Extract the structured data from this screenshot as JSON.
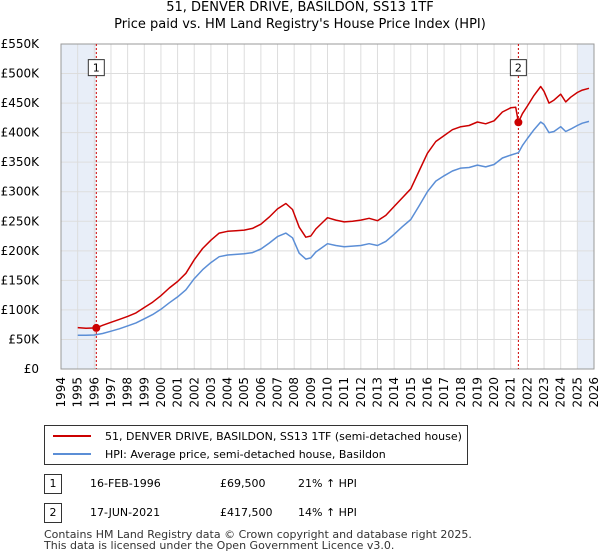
{
  "title_line1": "51, DENVER DRIVE, BASILDON, SS13 1TF",
  "title_line2": "Price paid vs. HM Land Registry's House Price Index (HPI)",
  "legend": {
    "property": "51, DENVER DRIVE, BASILDON, SS13 1TF (semi-detached house)",
    "hpi": "HPI: Average price, semi-detached house, Basildon"
  },
  "colors": {
    "property": "#cc0000",
    "hpi": "#5b8ed6",
    "grid": "#dddddd",
    "shade": "#e8eef8"
  },
  "sales": [
    {
      "num": "1",
      "date": "16-FEB-1996",
      "price": "£69,500",
      "hpi": "21% ↑ HPI"
    },
    {
      "num": "2",
      "date": "17-JUN-2021",
      "price": "£417,500",
      "hpi": "14% ↑ HPI"
    }
  ],
  "footer_line1": "Contains HM Land Registry data © Crown copyright and database right 2025.",
  "footer_line2": "This data is licensed under the Open Government Licence v3.0.",
  "chart_data": {
    "type": "line",
    "xlim": [
      1994,
      2026
    ],
    "ylim": [
      0,
      550000
    ],
    "x_ticks": [
      "1994",
      "1995",
      "1996",
      "1997",
      "1998",
      "1999",
      "2000",
      "2001",
      "2002",
      "2003",
      "2004",
      "2005",
      "2006",
      "2007",
      "2008",
      "2009",
      "2010",
      "2011",
      "2012",
      "2013",
      "2014",
      "2015",
      "2016",
      "2017",
      "2018",
      "2019",
      "2020",
      "2021",
      "2022",
      "2023",
      "2024",
      "2025",
      "2026"
    ],
    "y_ticks": [
      {
        "value": 0,
        "label": "£0"
      },
      {
        "value": 50000,
        "label": "£50K"
      },
      {
        "value": 100000,
        "label": "£100K"
      },
      {
        "value": 150000,
        "label": "£150K"
      },
      {
        "value": 200000,
        "label": "£200K"
      },
      {
        "value": 250000,
        "label": "£250K"
      },
      {
        "value": 300000,
        "label": "£300K"
      },
      {
        "value": 350000,
        "label": "£350K"
      },
      {
        "value": 400000,
        "label": "£400K"
      },
      {
        "value": 450000,
        "label": "£450K"
      },
      {
        "value": 500000,
        "label": "£500K"
      },
      {
        "value": 550000,
        "label": "£550K"
      }
    ],
    "shaded_ranges": [
      [
        1994,
        1996.12
      ],
      [
        2025.0,
        2026
      ]
    ],
    "markers": [
      {
        "label": "1",
        "x": 1996.12,
        "y": 69500,
        "box_y": 510000
      },
      {
        "label": "2",
        "x": 2021.46,
        "y": 417500,
        "box_y": 510000
      }
    ],
    "series": [
      {
        "name": "51, DENVER DRIVE, BASILDON, SS13 1TF (semi-detached house)",
        "key": "property",
        "x": [
          1995.0,
          1995.5,
          1996.12,
          1996.5,
          1997.0,
          1997.5,
          1998.0,
          1998.5,
          1999.0,
          1999.5,
          2000.0,
          2000.5,
          2001.0,
          2001.5,
          2002.0,
          2002.5,
          2003.0,
          2003.5,
          2004.0,
          2004.5,
          2005.0,
          2005.5,
          2006.0,
          2006.5,
          2007.0,
          2007.5,
          2007.9,
          2008.3,
          2008.7,
          2009.0,
          2009.3,
          2009.7,
          2010.0,
          2010.5,
          2011.0,
          2011.5,
          2012.0,
          2012.5,
          2013.0,
          2013.5,
          2014.0,
          2014.5,
          2015.0,
          2015.5,
          2016.0,
          2016.5,
          2017.0,
          2017.5,
          2018.0,
          2018.5,
          2019.0,
          2019.5,
          2020.0,
          2020.5,
          2021.0,
          2021.3,
          2021.46,
          2021.7,
          2022.0,
          2022.4,
          2022.8,
          2023.0,
          2023.3,
          2023.6,
          2024.0,
          2024.3,
          2024.6,
          2025.0,
          2025.3,
          2025.7
        ],
        "values": [
          70000,
          69000,
          69500,
          74000,
          79000,
          84000,
          89000,
          95000,
          104000,
          113000,
          124000,
          137000,
          148000,
          162000,
          185000,
          204000,
          218000,
          230000,
          233000,
          234000,
          235000,
          238000,
          245000,
          257000,
          271000,
          280000,
          270000,
          240000,
          223000,
          225000,
          237000,
          248000,
          256000,
          252000,
          249000,
          250000,
          252000,
          255000,
          251000,
          260000,
          275000,
          290000,
          305000,
          335000,
          365000,
          385000,
          395000,
          405000,
          410000,
          412000,
          418000,
          415000,
          420000,
          435000,
          442000,
          443000,
          417500,
          432000,
          445000,
          463000,
          478000,
          470000,
          450000,
          455000,
          465000,
          452000,
          460000,
          468000,
          472000,
          475000
        ]
      },
      {
        "name": "HPI: Average price, semi-detached house, Basildon",
        "key": "hpi",
        "x": [
          1995.0,
          1995.5,
          1996.0,
          1996.5,
          1997.0,
          1997.5,
          1998.0,
          1998.5,
          1999.0,
          1999.5,
          2000.0,
          2000.5,
          2001.0,
          2001.5,
          2002.0,
          2002.5,
          2003.0,
          2003.5,
          2004.0,
          2004.5,
          2005.0,
          2005.5,
          2006.0,
          2006.5,
          2007.0,
          2007.5,
          2007.9,
          2008.3,
          2008.7,
          2009.0,
          2009.3,
          2009.7,
          2010.0,
          2010.5,
          2011.0,
          2011.5,
          2012.0,
          2012.5,
          2013.0,
          2013.5,
          2014.0,
          2014.5,
          2015.0,
          2015.5,
          2016.0,
          2016.5,
          2017.0,
          2017.5,
          2018.0,
          2018.5,
          2019.0,
          2019.5,
          2020.0,
          2020.5,
          2021.0,
          2021.46,
          2021.7,
          2022.0,
          2022.4,
          2022.8,
          2023.0,
          2023.3,
          2023.6,
          2024.0,
          2024.3,
          2024.6,
          2025.0,
          2025.3,
          2025.7
        ],
        "values": [
          57000,
          57000,
          57500,
          60000,
          64000,
          68000,
          73000,
          78000,
          85000,
          92000,
          101000,
          112000,
          122000,
          134000,
          153000,
          168000,
          180000,
          190000,
          193000,
          194000,
          195000,
          197000,
          203000,
          213000,
          224000,
          230000,
          222000,
          196000,
          186000,
          188000,
          198000,
          206000,
          212000,
          209000,
          207000,
          208000,
          209000,
          212000,
          209000,
          216000,
          228000,
          241000,
          253000,
          276000,
          300000,
          318000,
          327000,
          335000,
          340000,
          341000,
          345000,
          342000,
          346000,
          357000,
          362000,
          366000,
          378000,
          390000,
          405000,
          418000,
          414000,
          400000,
          402000,
          410000,
          402000,
          406000,
          412000,
          416000,
          419000
        ]
      }
    ]
  }
}
